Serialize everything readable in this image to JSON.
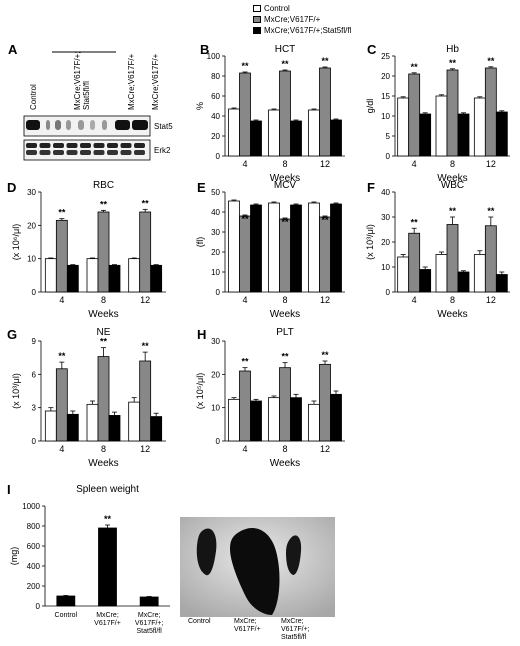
{
  "legend": [
    {
      "label": "Control",
      "color": "#ffffff"
    },
    {
      "label": "MxCre;V617F/+",
      "color": "#888888"
    },
    {
      "label": "MxCre;V617F/+;Stat5fl/fl",
      "color": "#000000"
    }
  ],
  "blot": {
    "letter": "A",
    "lanes": [
      "Control",
      "MxCre;V617F/+;\nStat5fl/fl",
      "MxCre;V617F/+",
      "MxCre;V617F/+"
    ],
    "bands": [
      "Stat5",
      "Erk2"
    ]
  },
  "chart_data": [
    {
      "id": "B",
      "type": "bar",
      "title": "HCT",
      "ylabel": "%",
      "xlabel": "Weeks",
      "categories": [
        "4",
        "8",
        "12"
      ],
      "ylim": [
        0,
        100
      ],
      "yticks": [
        0,
        20,
        40,
        60,
        80,
        100
      ],
      "series": [
        {
          "name": "Control",
          "values": [
            47,
            46,
            46
          ],
          "err": [
            1,
            1,
            1
          ]
        },
        {
          "name": "MxCre;V617F/+",
          "values": [
            83,
            85,
            88
          ],
          "err": [
            1,
            1,
            1
          ]
        },
        {
          "name": "MxCre;V617F/+;Stat5fl/fl",
          "values": [
            35,
            35,
            36
          ],
          "err": [
            1,
            1,
            1
          ]
        }
      ],
      "sig": [
        "**",
        "**",
        "**"
      ]
    },
    {
      "id": "C",
      "type": "bar",
      "title": "Hb",
      "ylabel": "g/dl",
      "xlabel": "Weeks",
      "categories": [
        "4",
        "8",
        "12"
      ],
      "ylim": [
        0,
        25
      ],
      "yticks": [
        0,
        5,
        10,
        15,
        20,
        25
      ],
      "series": [
        {
          "name": "Control",
          "values": [
            14.5,
            15,
            14.5
          ],
          "err": [
            0.3,
            0.3,
            0.3
          ]
        },
        {
          "name": "MxCre;V617F/+",
          "values": [
            20.5,
            21.5,
            22
          ],
          "err": [
            0.3,
            0.3,
            0.3
          ]
        },
        {
          "name": "MxCre;V617F/+;Stat5fl/fl",
          "values": [
            10.5,
            10.5,
            11
          ],
          "err": [
            0.3,
            0.3,
            0.3
          ]
        }
      ],
      "sig": [
        "**",
        "**",
        "**"
      ]
    },
    {
      "id": "D",
      "type": "bar",
      "title": "RBC",
      "ylabel": "(x 10⁶/μl)",
      "xlabel": "Weeks",
      "categories": [
        "4",
        "8",
        "12"
      ],
      "ylim": [
        0,
        30
      ],
      "yticks": [
        0,
        10,
        20,
        30
      ],
      "series": [
        {
          "name": "Control",
          "values": [
            10,
            10,
            10
          ],
          "err": [
            0.2,
            0.2,
            0.2
          ]
        },
        {
          "name": "MxCre;V617F/+",
          "values": [
            21.5,
            24,
            24
          ],
          "err": [
            0.5,
            0.5,
            0.8
          ]
        },
        {
          "name": "MxCre;V617F/+;Stat5fl/fl",
          "values": [
            8,
            8,
            8
          ],
          "err": [
            0.2,
            0.2,
            0.2
          ]
        }
      ],
      "sig": [
        "**",
        "**",
        "**"
      ]
    },
    {
      "id": "E",
      "type": "bar",
      "title": "MCV",
      "ylabel": "(fl)",
      "xlabel": "Weeks",
      "categories": [
        "4",
        "8",
        "12"
      ],
      "ylim": [
        0,
        50
      ],
      "yticks": [
        0,
        10,
        20,
        30,
        40,
        50
      ],
      "series": [
        {
          "name": "Control",
          "values": [
            45.5,
            44.5,
            44.5
          ],
          "err": [
            0.5,
            0.5,
            0.5
          ]
        },
        {
          "name": "MxCre;V617F/+",
          "values": [
            38,
            36.5,
            37.5
          ],
          "err": [
            0.5,
            0.5,
            0.5
          ]
        },
        {
          "name": "MxCre;V617F/+;Stat5fl/fl",
          "values": [
            43.5,
            43.5,
            44
          ],
          "err": [
            0.5,
            0.5,
            0.5
          ]
        }
      ],
      "sig": [
        "**",
        "**",
        "**"
      ]
    },
    {
      "id": "F",
      "type": "bar",
      "title": "WBC",
      "ylabel": "(x 10³/μl)",
      "xlabel": "Weeks",
      "categories": [
        "4",
        "8",
        "12"
      ],
      "ylim": [
        0,
        40
      ],
      "yticks": [
        0,
        10,
        20,
        30,
        40
      ],
      "series": [
        {
          "name": "Control",
          "values": [
            14,
            15,
            15
          ],
          "err": [
            1,
            1,
            1.5
          ]
        },
        {
          "name": "MxCre;V617F/+",
          "values": [
            23.5,
            27,
            26.5
          ],
          "err": [
            2,
            3,
            3.5
          ]
        },
        {
          "name": "MxCre;V617F/+;Stat5fl/fl",
          "values": [
            9,
            8,
            7
          ],
          "err": [
            1,
            0.5,
            1
          ]
        }
      ],
      "sig": [
        "**",
        "**",
        "**"
      ]
    },
    {
      "id": "G",
      "type": "bar",
      "title": "NE",
      "ylabel": "(x 10³/μl)",
      "xlabel": "Weeks",
      "categories": [
        "4",
        "8",
        "12"
      ],
      "ylim": [
        0,
        9
      ],
      "yticks": [
        0,
        3,
        6,
        9
      ],
      "series": [
        {
          "name": "Control",
          "values": [
            2.7,
            3.3,
            3.5
          ],
          "err": [
            0.3,
            0.3,
            0.4
          ]
        },
        {
          "name": "MxCre;V617F/+",
          "values": [
            6.5,
            7.6,
            7.2
          ],
          "err": [
            0.6,
            0.8,
            0.8
          ]
        },
        {
          "name": "MxCre;V617F/+;Stat5fl/fl",
          "values": [
            2.4,
            2.3,
            2.2
          ],
          "err": [
            0.3,
            0.3,
            0.3
          ]
        }
      ],
      "sig": [
        "**",
        "**",
        "**"
      ]
    },
    {
      "id": "H",
      "type": "bar",
      "title": "PLT",
      "ylabel": "(x 10⁵/μl)",
      "xlabel": "Weeks",
      "categories": [
        "4",
        "8",
        "12"
      ],
      "ylim": [
        0,
        30
      ],
      "yticks": [
        0,
        10,
        20,
        30
      ],
      "series": [
        {
          "name": "Control",
          "values": [
            12.5,
            13,
            11
          ],
          "err": [
            0.5,
            0.5,
            1
          ]
        },
        {
          "name": "MxCre;V617F/+",
          "values": [
            21,
            22,
            23
          ],
          "err": [
            1,
            1.5,
            1
          ]
        },
        {
          "name": "MxCre;V617F/+;Stat5fl/fl",
          "values": [
            12,
            13,
            14
          ],
          "err": [
            0.5,
            1,
            1
          ]
        }
      ],
      "sig": [
        "**",
        "**",
        "**"
      ]
    },
    {
      "id": "I",
      "type": "bar",
      "title": "Spleen weight",
      "ylabel": "(mg)",
      "xlabel": "",
      "categories": [
        "Control",
        "MxCre;\nV617F/+",
        "MxCre;\nV617F/+;\nStat5fl/fl"
      ],
      "ylim": [
        0,
        1000
      ],
      "yticks": [
        0,
        200,
        400,
        600,
        800,
        1000
      ],
      "series": [
        {
          "name": "Spleen weight",
          "values": [
            100,
            780,
            90
          ],
          "err": [
            5,
            30,
            5
          ]
        }
      ],
      "sig": [
        "",
        "**",
        ""
      ]
    }
  ],
  "photo": {
    "labels": [
      "Control",
      "MxCre;\nV617F/+",
      "MxCre;\nV617F/+;\nStat5fl/fl"
    ]
  }
}
